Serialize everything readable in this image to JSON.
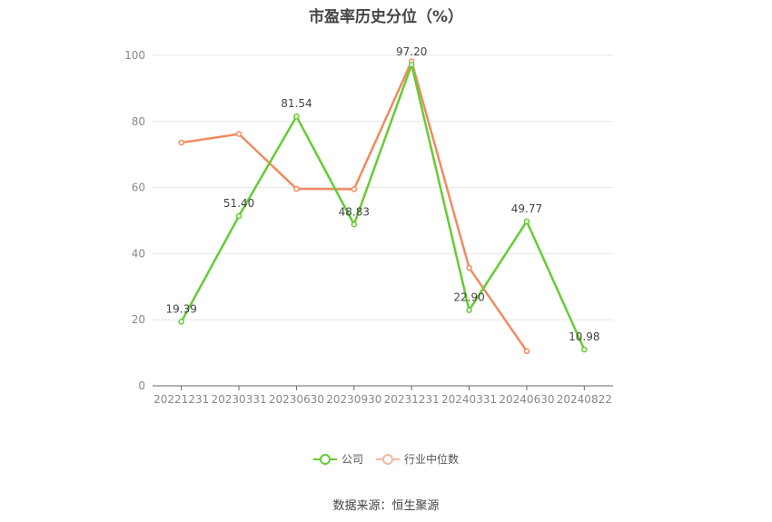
{
  "chart_data": {
    "type": "line",
    "title": "市盈率历史分位（%）",
    "categories": [
      "20221231",
      "20230331",
      "20230630",
      "20230930",
      "20231231",
      "20240331",
      "20240630",
      "20240822"
    ],
    "ylim": [
      0,
      100
    ],
    "yticks": [
      0,
      20,
      40,
      60,
      80,
      100
    ],
    "grid": true,
    "legend_position": "bottom",
    "series": [
      {
        "name": "公司",
        "color": "#66cc33",
        "values": [
          19.39,
          51.4,
          81.54,
          48.83,
          97.2,
          22.9,
          49.77,
          10.98
        ],
        "data_labels": [
          "19.39",
          "51.40",
          "81.54",
          "48.83",
          "97.20",
          "22.90",
          "49.77",
          "10.98"
        ]
      },
      {
        "name": "行业中位数",
        "color": "#f08b60",
        "values": [
          73.6,
          76.2,
          59.6,
          59.5,
          98.2,
          35.7,
          10.5,
          null
        ]
      }
    ],
    "source": "数据来源：恒生聚源"
  }
}
